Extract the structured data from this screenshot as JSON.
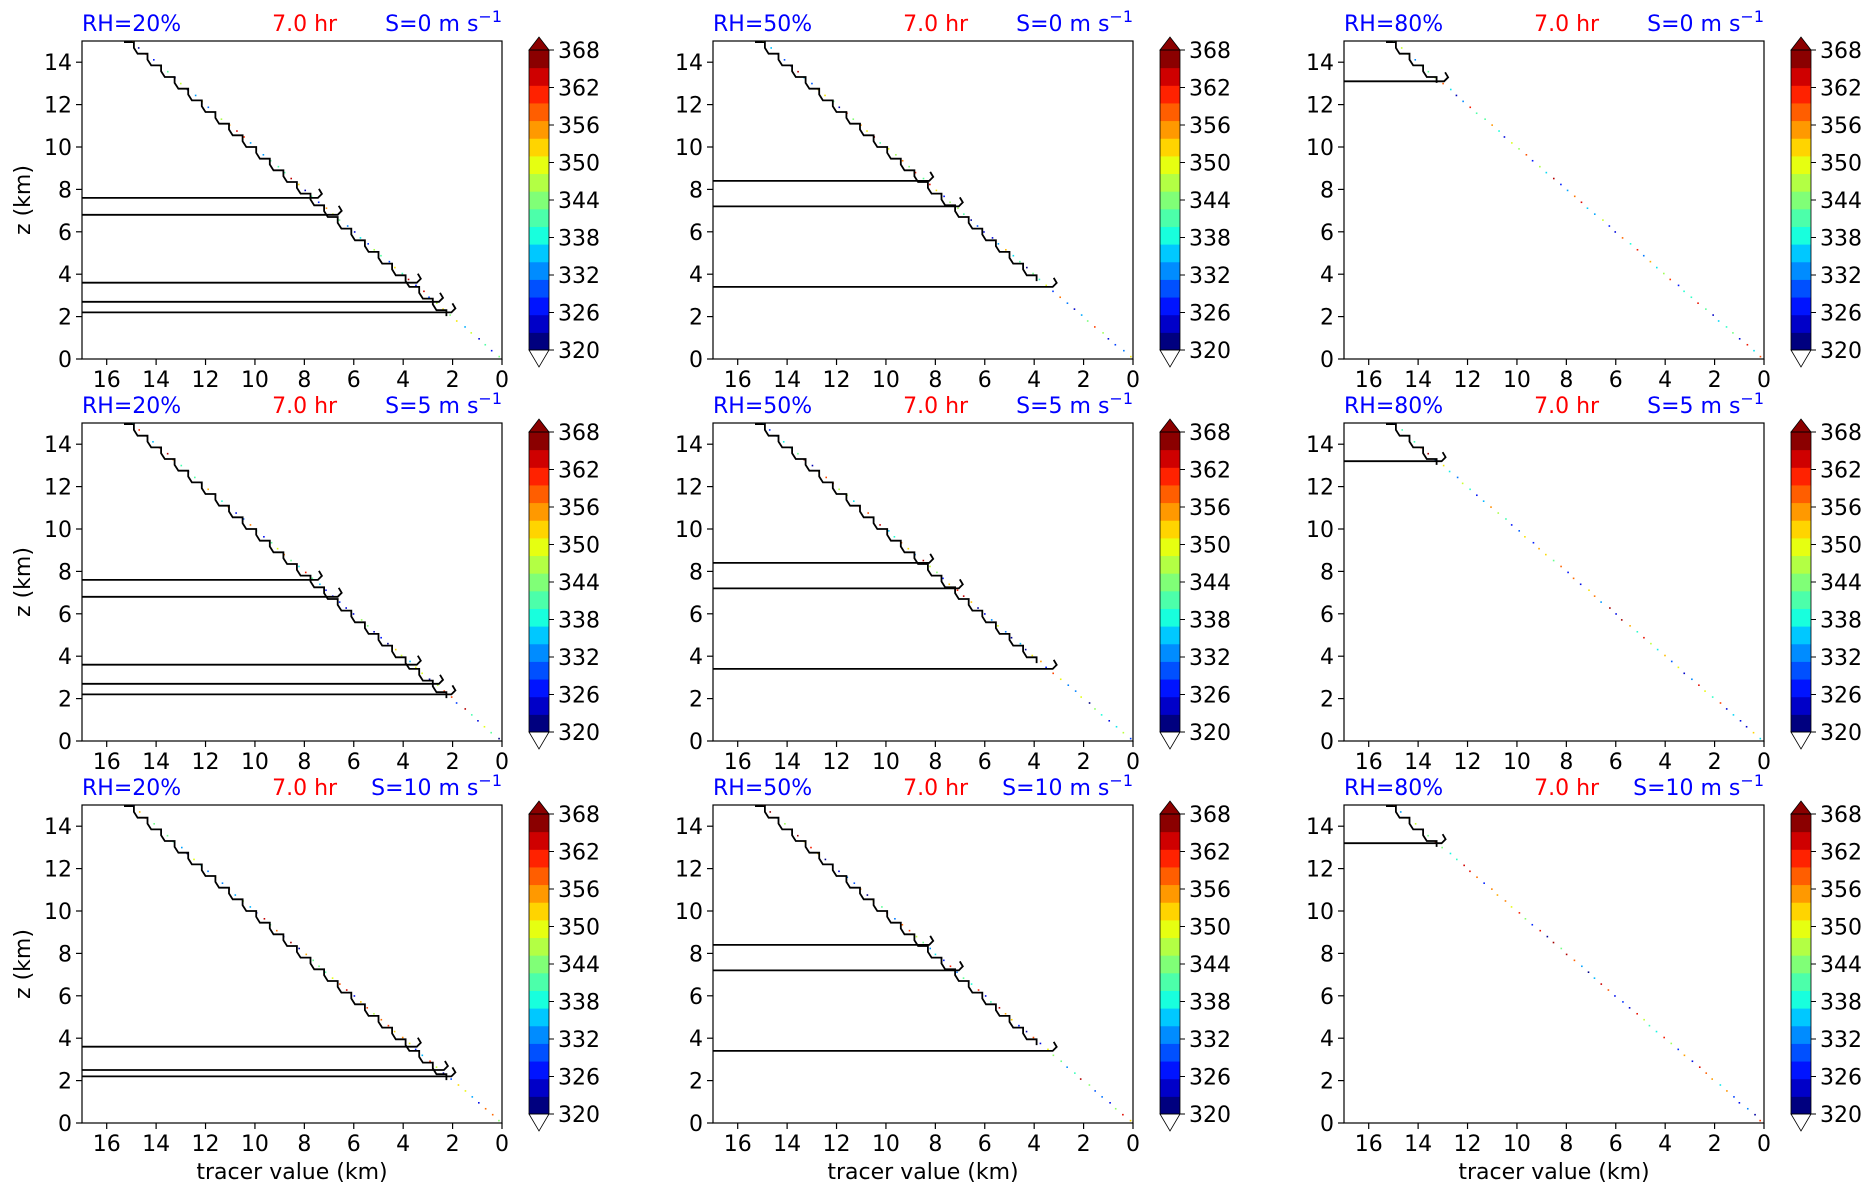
{
  "figure": {
    "rows": 3,
    "cols": 3,
    "colorbar": {
      "ticks": [
        320,
        326,
        332,
        338,
        344,
        350,
        356,
        362,
        368
      ],
      "min": 320,
      "max": 368,
      "colors": [
        "#00007f",
        "#0000c8",
        "#0014ff",
        "#0050ff",
        "#008cff",
        "#00c8ff",
        "#18ffdd",
        "#4cffaa",
        "#80ff77",
        "#b3ff44",
        "#e6ff11",
        "#ffd400",
        "#ff9900",
        "#ff5e00",
        "#ff2200",
        "#cf0000",
        "#8b0000"
      ]
    },
    "title_colors": {
      "rh": "#0000ff",
      "time": "#ff0000",
      "shear": "#0000ff"
    }
  },
  "chart_data": [
    {
      "type": "contour",
      "row": 0,
      "col": 0,
      "title_rh": "RH=20%",
      "title_time": "7.0 hr",
      "title_shear": "S=0 m s",
      "title_shear_sup": "−1",
      "ylabel": "z (km)",
      "xlabel": "",
      "xlim": [
        17,
        0
      ],
      "ylim": [
        0,
        15
      ],
      "xticks": [
        16,
        14,
        12,
        10,
        8,
        6,
        4,
        2,
        0
      ],
      "yticks": [
        0,
        2,
        4,
        6,
        8,
        10,
        12,
        14
      ],
      "contour_levels": [
        15,
        7.6,
        6.8,
        3.6,
        2.7,
        2.2
      ]
    },
    {
      "type": "contour",
      "row": 0,
      "col": 1,
      "title_rh": "RH=50%",
      "title_time": "7.0 hr",
      "title_shear": "S=0 m s",
      "title_shear_sup": "−1",
      "ylabel": "",
      "xlabel": "",
      "xlim": [
        17,
        0
      ],
      "ylim": [
        0,
        15
      ],
      "xticks": [
        16,
        14,
        12,
        10,
        8,
        6,
        4,
        2,
        0
      ],
      "yticks": [
        0,
        2,
        4,
        6,
        8,
        10,
        12,
        14
      ],
      "contour_levels": [
        15,
        8.4,
        7.2,
        3.4
      ]
    },
    {
      "type": "contour",
      "row": 0,
      "col": 2,
      "title_rh": "RH=80%",
      "title_time": "7.0 hr",
      "title_shear": "S=0 m s",
      "title_shear_sup": "−1",
      "ylabel": "",
      "xlabel": "",
      "xlim": [
        17,
        0
      ],
      "ylim": [
        0,
        15
      ],
      "xticks": [
        16,
        14,
        12,
        10,
        8,
        6,
        4,
        2,
        0
      ],
      "yticks": [
        0,
        2,
        4,
        6,
        8,
        10,
        12,
        14
      ],
      "contour_levels": [
        15,
        13.1
      ]
    },
    {
      "type": "contour",
      "row": 1,
      "col": 0,
      "title_rh": "RH=20%",
      "title_time": "7.0 hr",
      "title_shear": "S=5 m s",
      "title_shear_sup": "−1",
      "ylabel": "z (km)",
      "xlabel": "",
      "xlim": [
        17,
        0
      ],
      "ylim": [
        0,
        15
      ],
      "xticks": [
        16,
        14,
        12,
        10,
        8,
        6,
        4,
        2,
        0
      ],
      "yticks": [
        0,
        2,
        4,
        6,
        8,
        10,
        12,
        14
      ],
      "contour_levels": [
        15,
        7.6,
        6.8,
        3.6,
        2.7,
        2.2
      ]
    },
    {
      "type": "contour",
      "row": 1,
      "col": 1,
      "title_rh": "RH=50%",
      "title_time": "7.0 hr",
      "title_shear": "S=5 m s",
      "title_shear_sup": "−1",
      "ylabel": "",
      "xlabel": "",
      "xlim": [
        17,
        0
      ],
      "ylim": [
        0,
        15
      ],
      "xticks": [
        16,
        14,
        12,
        10,
        8,
        6,
        4,
        2,
        0
      ],
      "yticks": [
        0,
        2,
        4,
        6,
        8,
        10,
        12,
        14
      ],
      "contour_levels": [
        15,
        8.4,
        7.2,
        3.4
      ]
    },
    {
      "type": "contour",
      "row": 1,
      "col": 2,
      "title_rh": "RH=80%",
      "title_time": "7.0 hr",
      "title_shear": "S=5 m s",
      "title_shear_sup": "−1",
      "ylabel": "",
      "xlabel": "",
      "xlim": [
        17,
        0
      ],
      "ylim": [
        0,
        15
      ],
      "xticks": [
        16,
        14,
        12,
        10,
        8,
        6,
        4,
        2,
        0
      ],
      "yticks": [
        0,
        2,
        4,
        6,
        8,
        10,
        12,
        14
      ],
      "contour_levels": [
        15,
        13.2
      ]
    },
    {
      "type": "contour",
      "row": 2,
      "col": 0,
      "title_rh": "RH=20%",
      "title_time": "7.0 hr",
      "title_shear": "S=10 m s",
      "title_shear_sup": "−1",
      "ylabel": "z (km)",
      "xlabel": "tracer value (km)",
      "xlim": [
        17,
        0
      ],
      "ylim": [
        0,
        15
      ],
      "xticks": [
        16,
        14,
        12,
        10,
        8,
        6,
        4,
        2,
        0
      ],
      "yticks": [
        0,
        2,
        4,
        6,
        8,
        10,
        12,
        14
      ],
      "contour_levels": [
        15,
        3.6,
        2.5,
        2.2
      ]
    },
    {
      "type": "contour",
      "row": 2,
      "col": 1,
      "title_rh": "RH=50%",
      "title_time": "7.0 hr",
      "title_shear": "S=10 m s",
      "title_shear_sup": "−1",
      "ylabel": "",
      "xlabel": "tracer value (km)",
      "xlim": [
        17,
        0
      ],
      "ylim": [
        0,
        15
      ],
      "xticks": [
        16,
        14,
        12,
        10,
        8,
        6,
        4,
        2,
        0
      ],
      "yticks": [
        0,
        2,
        4,
        6,
        8,
        10,
        12,
        14
      ],
      "contour_levels": [
        15,
        8.4,
        7.2,
        3.4
      ]
    },
    {
      "type": "contour",
      "row": 2,
      "col": 2,
      "title_rh": "RH=80%",
      "title_time": "7.0 hr",
      "title_shear": "S=10 m s",
      "title_shear_sup": "−1",
      "ylabel": "",
      "xlabel": "tracer value (km)",
      "xlim": [
        17,
        0
      ],
      "ylim": [
        0,
        15
      ],
      "xticks": [
        16,
        14,
        12,
        10,
        8,
        6,
        4,
        2,
        0
      ],
      "yticks": [
        0,
        2,
        4,
        6,
        8,
        10,
        12,
        14
      ],
      "contour_levels": [
        15,
        13.2
      ]
    }
  ]
}
